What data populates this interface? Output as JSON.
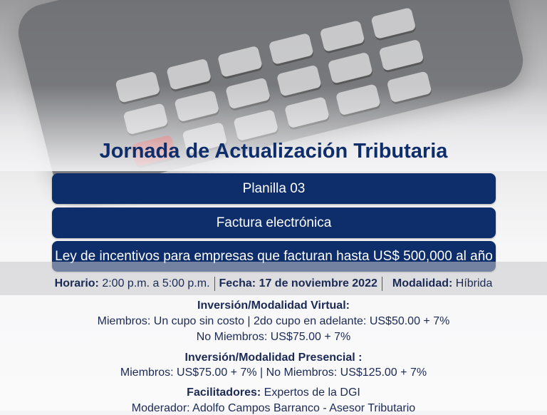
{
  "title": "Jornada de Actualización Tributaria",
  "topics": [
    "Planilla 03",
    "Factura electrónica",
    "Ley de incentivos para empresas que facturan hasta US$ 500,000 al año"
  ],
  "details": {
    "horario_label": "Horario:",
    "horario": "2:00 p.m. a 5:00 p.m.",
    "fecha_label": "Fecha:",
    "fecha": "17 de noviembre 2022",
    "modalidad_label": "Modalidad:",
    "modalidad": "Híbrida"
  },
  "virtual": {
    "heading": "Inversión/Modalidad Virtual:",
    "line1": "Miembros: Un cupo sin costo | 2do cupo en adelante:  US$50.00 + 7%",
    "line2": "No Miembros: US$75.00 + 7%"
  },
  "presencial": {
    "heading": "Inversión/Modalidad Presencial :",
    "line1": "Miembros: US$75.00 + 7% | No Miembros: US$125.00 + 7%"
  },
  "facilitadores": {
    "label": "Facilitadores:",
    "value": "Expertos de la DGI"
  },
  "moderador": "Moderador: Adolfo Campos Barranco - Asesor Tributario",
  "colors": {
    "navy": "#0d2d6b",
    "text": "#1b2a55"
  }
}
